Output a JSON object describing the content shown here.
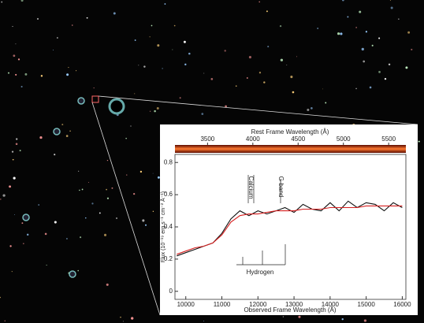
{
  "chart_data": {
    "type": "line",
    "title": "Rest Frame Wavelength (Å)",
    "x_label": "Observed Frame Wavelength (Å)",
    "y_label": "Flux (10⁻¹⁹ erg s⁻¹ cm⁻² Å⁻¹)",
    "annotations": [
      "Calcium",
      "G-band",
      "Hydrogen"
    ],
    "x": [
      9750,
      10000,
      10250,
      10500,
      10750,
      11000,
      11250,
      11500,
      11750,
      12000,
      12250,
      12500,
      12750,
      13000,
      13250,
      13500,
      13750,
      14000,
      14250,
      14500,
      14750,
      15000,
      15250,
      15500,
      15750,
      16000
    ],
    "series": [
      {
        "color": "#111111",
        "values": [
          0.22,
          0.24,
          0.26,
          0.28,
          0.3,
          0.36,
          0.45,
          0.5,
          0.47,
          0.5,
          0.48,
          0.5,
          0.52,
          0.49,
          0.54,
          0.51,
          0.5,
          0.55,
          0.5,
          0.56,
          0.52,
          0.55,
          0.54,
          0.5,
          0.55,
          0.52
        ]
      },
      {
        "color": "#d62020",
        "values": [
          0.23,
          0.25,
          0.27,
          0.28,
          0.3,
          0.35,
          0.43,
          0.47,
          0.48,
          0.48,
          0.49,
          0.5,
          0.5,
          0.5,
          0.51,
          0.51,
          0.51,
          0.52,
          0.52,
          0.52,
          0.52,
          0.53,
          0.53,
          0.53,
          0.53,
          0.53
        ]
      }
    ],
    "xlim": [
      9700,
      16100
    ],
    "xticks": [
      10000,
      11000,
      12000,
      13000,
      14000,
      15000,
      16000
    ],
    "x2lim": [
      3140,
      5690
    ],
    "x2ticks": [
      3500,
      4000,
      4500,
      5000,
      5500
    ],
    "ylim": [
      -0.05,
      0.85
    ],
    "yticks": [
      0,
      0.2,
      0.4,
      0.6,
      0.8
    ]
  }
}
